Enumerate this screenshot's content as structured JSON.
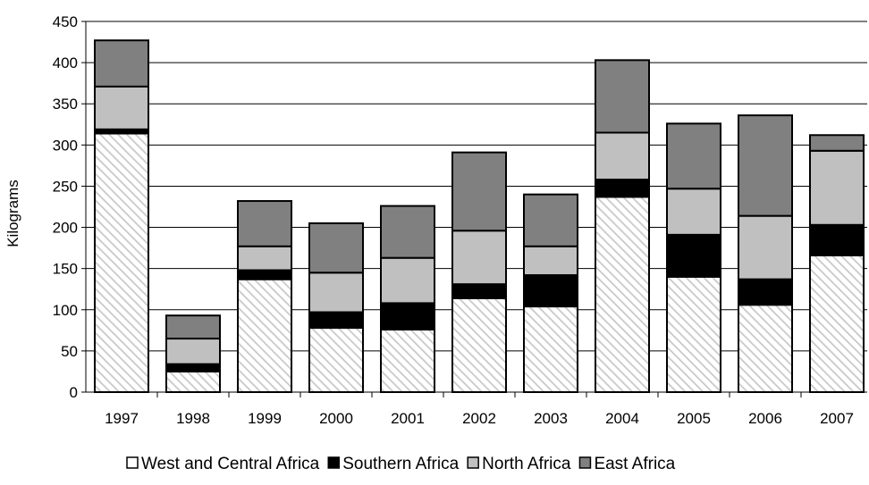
{
  "chart_data": {
    "type": "bar",
    "stacked": true,
    "title": "",
    "xlabel": "",
    "ylabel": "Kilograms",
    "ylim": [
      0,
      450
    ],
    "yticks": [
      0,
      50,
      100,
      150,
      200,
      250,
      300,
      350,
      400,
      450
    ],
    "grid": true,
    "legend_position": "bottom",
    "categories": [
      "1997",
      "1998",
      "1999",
      "2000",
      "2001",
      "2002",
      "2003",
      "2004",
      "2005",
      "2006",
      "2007"
    ],
    "series": [
      {
        "name": "West and Central Africa",
        "values": [
          314,
          25,
          137,
          78,
          76,
          114,
          104,
          237,
          140,
          106,
          166
        ],
        "color": "#ffffff",
        "pattern": "diagonal-hatch"
      },
      {
        "name": "Southern Africa",
        "values": [
          5,
          9,
          11,
          19,
          32,
          17,
          38,
          21,
          51,
          31,
          37
        ],
        "color": "#000000"
      },
      {
        "name": "North Africa",
        "values": [
          52,
          31,
          29,
          48,
          55,
          65,
          35,
          57,
          56,
          77,
          90
        ],
        "color": "#c0c0c0"
      },
      {
        "name": "East Africa",
        "values": [
          56,
          28,
          55,
          60,
          63,
          95,
          63,
          88,
          79,
          122,
          19
        ],
        "color": "#808080"
      }
    ]
  }
}
